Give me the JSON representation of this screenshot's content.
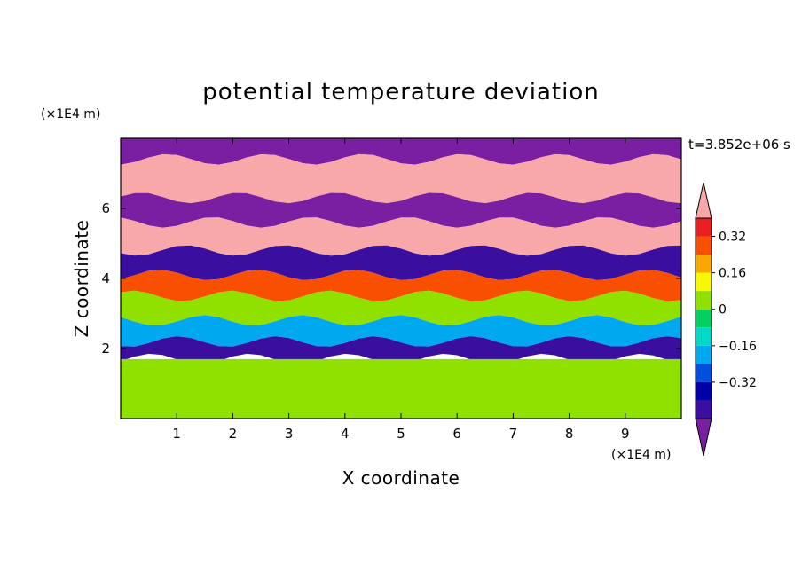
{
  "chart_data": {
    "type": "heatmap",
    "title": "potential temperature deviation",
    "xlabel": "X coordinate",
    "ylabel": "Z coordinate",
    "x_unit": "(×1E4 m)",
    "y_unit": "(×1E4 m)",
    "time_label": "t=3.852e+06 s",
    "x_range": [
      0,
      10
    ],
    "y_range": [
      0,
      8
    ],
    "x_ticks": [
      "1",
      "2",
      "3",
      "4",
      "5",
      "6",
      "7",
      "8",
      "9"
    ],
    "y_ticks": [
      "2",
      "4",
      "6"
    ],
    "colorbar": {
      "levels": [
        -0.48,
        -0.4,
        -0.32,
        -0.24,
        -0.16,
        -0.08,
        0,
        0.08,
        0.16,
        0.24,
        0.32,
        0.4
      ],
      "tick_labels": [
        "0.32",
        "0.16",
        "0",
        "−0.16",
        "−0.32"
      ],
      "tick_values": [
        0.32,
        0.16,
        0,
        -0.16,
        -0.32
      ],
      "colors": [
        "#7a1fa2",
        "#3a0fa0",
        "#0000a8",
        "#0050e0",
        "#00a8f0",
        "#00d8c8",
        "#00d060",
        "#90e000",
        "#f8f800",
        "#f8a800",
        "#f85000",
        "#e82020",
        "#f8a8a8"
      ],
      "extend": "both"
    },
    "bands": [
      {
        "z_top": 8.0,
        "z_bottom": 7.4,
        "value": -0.5
      },
      {
        "z_top": 7.4,
        "z_bottom": 6.3,
        "value": 0.5
      },
      {
        "z_top": 6.3,
        "z_bottom": 5.6,
        "value": -0.5
      },
      {
        "z_top": 5.6,
        "z_bottom": 4.8,
        "value": 0.45
      },
      {
        "z_top": 4.8,
        "z_bottom": 4.1,
        "value": -0.45
      },
      {
        "z_top": 4.1,
        "z_bottom": 3.5,
        "value": 0.3
      },
      {
        "z_top": 3.5,
        "z_bottom": 2.8,
        "value": 0.0
      },
      {
        "z_top": 2.8,
        "z_bottom": 2.2,
        "value": -0.2
      },
      {
        "z_top": 2.2,
        "z_bottom": 1.7,
        "value": -0.45
      },
      {
        "z_top": 1.7,
        "z_bottom": 0.0,
        "value": 0.05
      }
    ]
  }
}
